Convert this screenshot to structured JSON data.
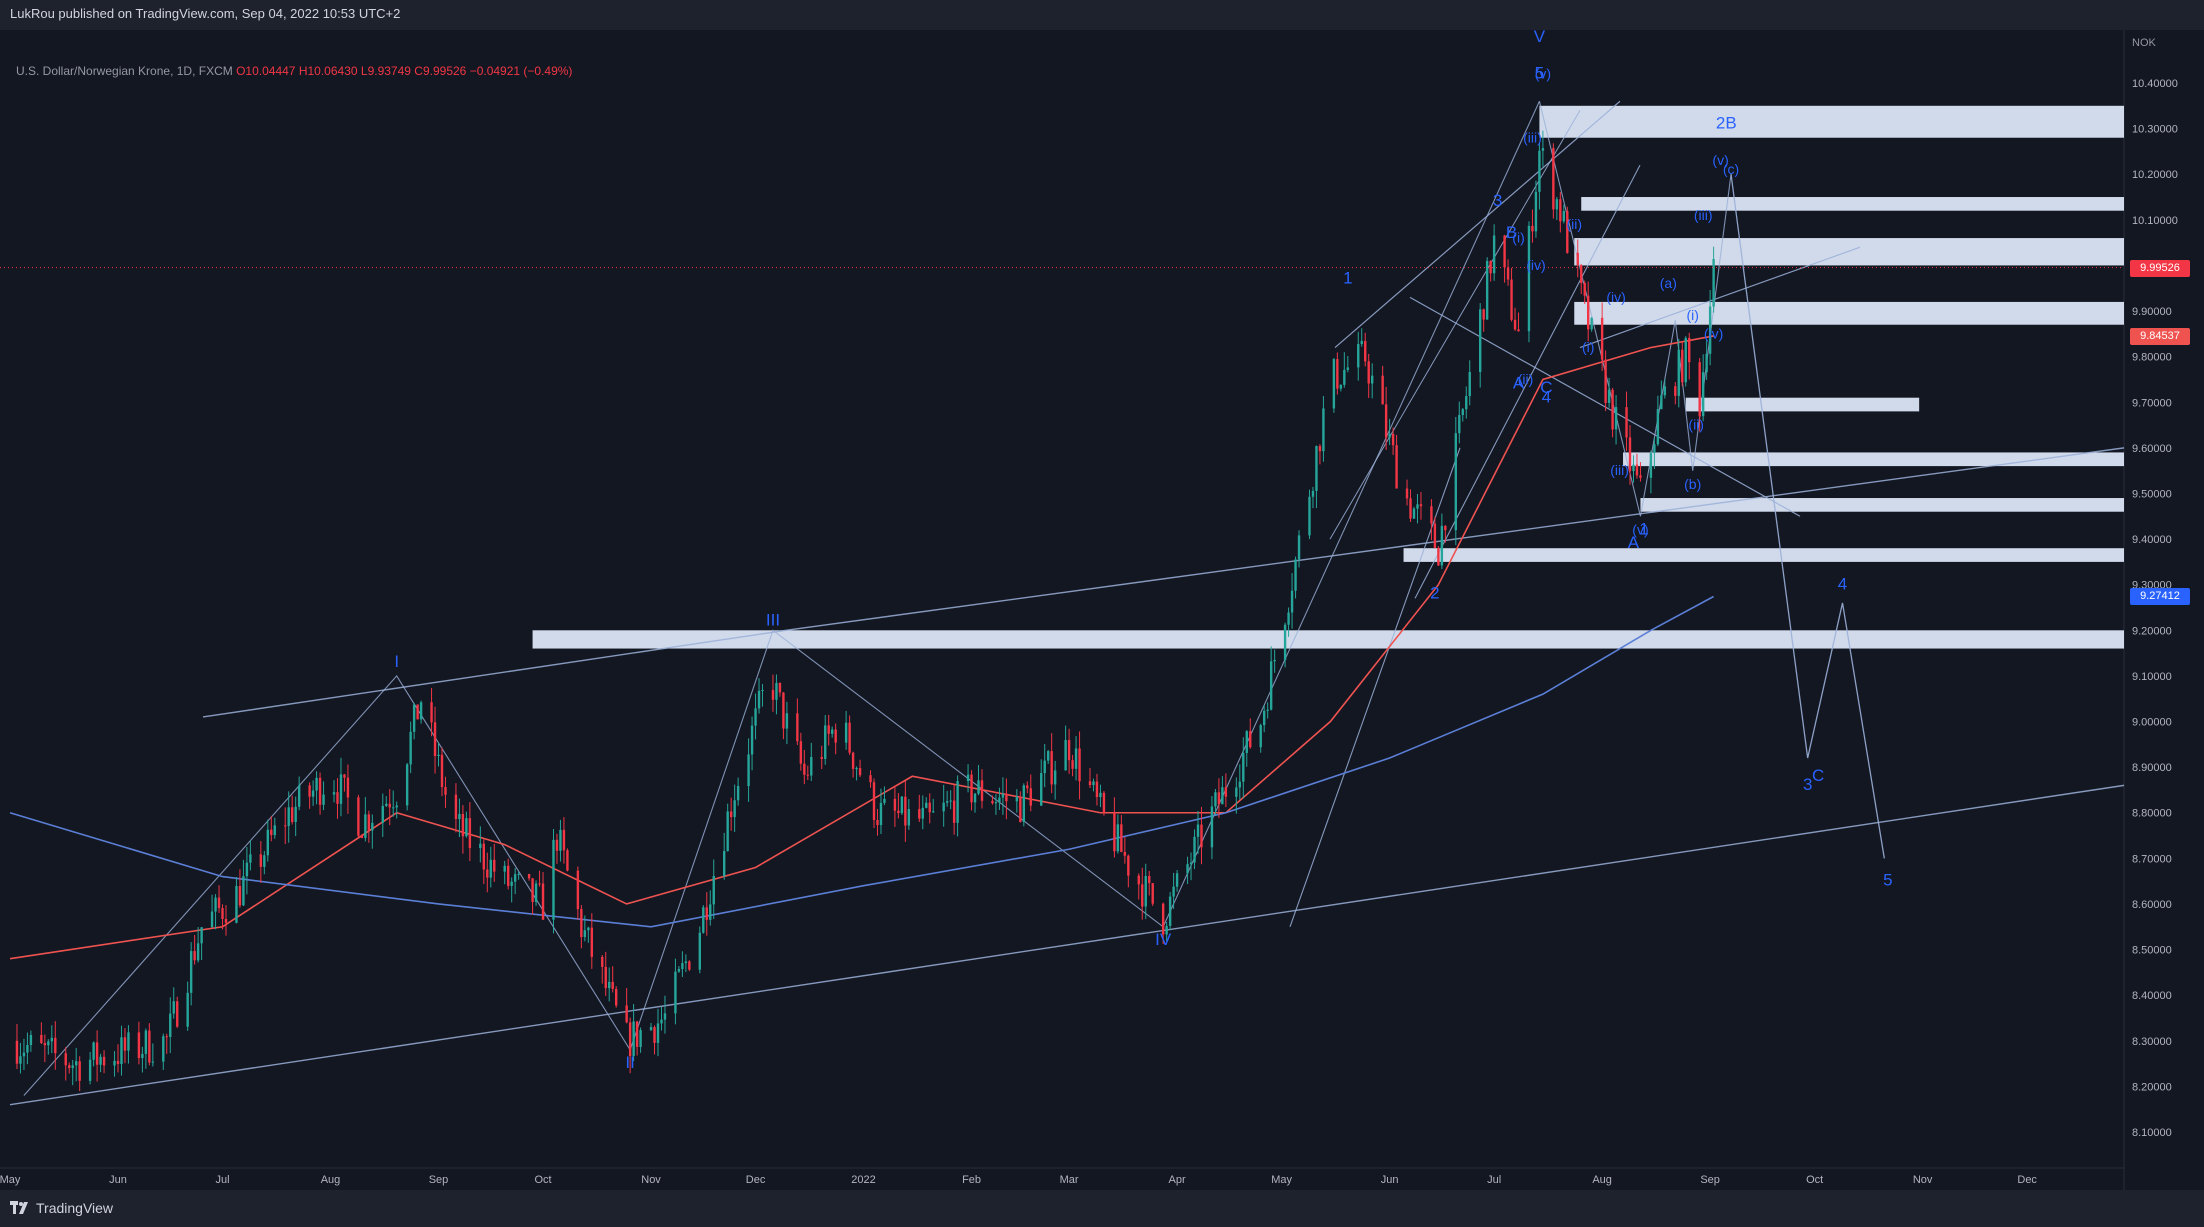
{
  "header": {
    "publisher": "LukRou published on TradingView.com, Sep 04, 2022 10:53 UTC+2"
  },
  "symbol_line": {
    "name": "U.S. Dollar/Norwegian Krone, 1D, FXCM",
    "open": "O10.04447",
    "high": "H10.06430",
    "low": "L9.93749",
    "close": "C9.99526",
    "change": "−0.04921 (−0.49%)"
  },
  "footer": {
    "brand": "TradingView"
  },
  "colors": {
    "background": "#131722",
    "up": "#26a69a",
    "down": "#f23645",
    "ma50": "#ef5350",
    "ma200": "#5b7fd6",
    "drawing": "#9bb0d8",
    "zone": "#dbe5f7",
    "wave_label": "#2962ff"
  },
  "price_tags": {
    "current": "9.99526",
    "ma50": "9.84537",
    "ma200": "9.27412"
  },
  "chart_data": {
    "type": "candlestick",
    "title": "U.S. Dollar/Norwegian Krone, 1D, FXCM",
    "currency_label": "NOK",
    "y_ticks": [
      "10.40000",
      "10.30000",
      "10.20000",
      "10.10000",
      "10.00000",
      "9.90000",
      "9.80000",
      "9.70000",
      "9.60000",
      "9.50000",
      "9.40000",
      "9.30000",
      "9.20000",
      "9.10000",
      "9.00000",
      "8.90000",
      "8.80000",
      "8.70000",
      "8.60000",
      "8.50000",
      "8.40000",
      "8.30000",
      "8.20000",
      "8.10000"
    ],
    "ylim": [
      8.03,
      10.52
    ],
    "x_ticks": [
      "May",
      "Jun",
      "Jul",
      "Aug",
      "Sep",
      "Oct",
      "Nov",
      "Dec",
      "2022",
      "Feb",
      "Mar",
      "Apr",
      "May",
      "Jun",
      "Jul",
      "Aug",
      "Sep",
      "Oct",
      "Nov",
      "Dec"
    ],
    "price_path": [
      [
        "2021-05-01",
        8.3
      ],
      [
        "2021-05-20",
        8.25
      ],
      [
        "2021-06-15",
        8.3
      ],
      [
        "2021-06-25",
        8.55
      ],
      [
        "2021-07-05",
        8.62
      ],
      [
        "2021-07-20",
        8.8
      ],
      [
        "2021-08-01",
        8.88
      ],
      [
        "2021-08-10",
        8.78
      ],
      [
        "2021-08-20",
        8.85
      ],
      [
        "2021-08-27",
        9.05
      ],
      [
        "2021-09-05",
        8.78
      ],
      [
        "2021-09-20",
        8.65
      ],
      [
        "2021-10-01",
        8.6
      ],
      [
        "2021-10-05",
        8.75
      ],
      [
        "2021-10-12",
        8.55
      ],
      [
        "2021-10-25",
        8.3
      ],
      [
        "2021-11-05",
        8.35
      ],
      [
        "2021-11-15",
        8.55
      ],
      [
        "2021-11-25",
        8.85
      ],
      [
        "2021-12-05",
        9.1
      ],
      [
        "2021-12-15",
        8.88
      ],
      [
        "2021-12-25",
        9.0
      ],
      [
        "2022-01-05",
        8.8
      ],
      [
        "2022-01-20",
        8.78
      ],
      [
        "2022-02-01",
        8.85
      ],
      [
        "2022-02-15",
        8.82
      ],
      [
        "2022-03-01",
        8.95
      ],
      [
        "2022-03-10",
        8.8
      ],
      [
        "2022-03-20",
        8.66
      ],
      [
        "2022-03-28",
        8.57
      ],
      [
        "2022-04-10",
        8.78
      ],
      [
        "2022-04-25",
        9.0
      ],
      [
        "2022-05-05",
        9.35
      ],
      [
        "2022-05-15",
        9.75
      ],
      [
        "2022-05-25",
        9.8
      ],
      [
        "2022-06-05",
        9.5
      ],
      [
        "2022-06-15",
        9.38
      ],
      [
        "2022-06-25",
        9.8
      ],
      [
        "2022-07-01",
        10.05
      ],
      [
        "2022-07-08",
        9.85
      ],
      [
        "2022-07-14",
        10.25
      ],
      [
        "2022-07-20",
        10.12
      ],
      [
        "2022-07-27",
        9.9
      ],
      [
        "2022-08-05",
        9.65
      ],
      [
        "2022-08-12",
        9.5
      ],
      [
        "2022-08-18",
        9.7
      ],
      [
        "2022-08-25",
        9.8
      ],
      [
        "2022-08-29",
        9.7
      ],
      [
        "2022-09-02",
        9.99526
      ]
    ],
    "moving_averages": [
      {
        "name": "MA50",
        "path": [
          [
            "2021-05-01",
            8.48
          ],
          [
            "2021-07-01",
            8.55
          ],
          [
            "2021-08-20",
            8.8
          ],
          [
            "2021-09-20",
            8.73
          ],
          [
            "2021-10-25",
            8.6
          ],
          [
            "2021-12-01",
            8.68
          ],
          [
            "2022-01-15",
            8.88
          ],
          [
            "2022-03-10",
            8.8
          ],
          [
            "2022-04-15",
            8.8
          ],
          [
            "2022-05-15",
            9.0
          ],
          [
            "2022-06-15",
            9.3
          ],
          [
            "2022-07-15",
            9.75
          ],
          [
            "2022-08-15",
            9.82
          ],
          [
            "2022-09-02",
            9.84537
          ]
        ]
      },
      {
        "name": "MA200",
        "path": [
          [
            "2021-05-01",
            8.8
          ],
          [
            "2021-07-01",
            8.66
          ],
          [
            "2021-09-01",
            8.6
          ],
          [
            "2021-11-01",
            8.55
          ],
          [
            "2022-01-01",
            8.64
          ],
          [
            "2022-03-01",
            8.72
          ],
          [
            "2022-04-15",
            8.8
          ],
          [
            "2022-06-01",
            8.92
          ],
          [
            "2022-07-15",
            9.06
          ],
          [
            "2022-08-15",
            9.2
          ],
          [
            "2022-09-02",
            9.27412
          ]
        ]
      }
    ],
    "current_price": 9.99526,
    "wave_labels": [
      {
        "text": "I",
        "x": "2021-08-20",
        "y": 9.12
      },
      {
        "text": "II",
        "x": "2021-10-26",
        "y": 8.24
      },
      {
        "text": "III",
        "x": "2021-12-06",
        "y": 9.21
      },
      {
        "text": "IV",
        "x": "2022-03-28",
        "y": 8.51
      },
      {
        "text": "V",
        "x": "2022-07-14",
        "y": 10.49
      },
      {
        "text": "1",
        "x": "2022-05-20",
        "y": 9.96
      },
      {
        "text": "2",
        "x": "2022-06-14",
        "y": 9.27
      },
      {
        "text": "3",
        "x": "2022-07-02",
        "y": 10.13
      },
      {
        "text": "4",
        "x": "2022-07-16",
        "y": 9.7
      },
      {
        "text": "5",
        "x": "2022-07-14",
        "y": 10.41
      },
      {
        "text": "A",
        "x": "2022-07-08",
        "y": 9.73
      },
      {
        "text": "B",
        "x": "2022-07-06",
        "y": 10.06
      },
      {
        "text": "C",
        "x": "2022-07-16",
        "y": 9.72
      },
      {
        "text": "(v)",
        "x": "2022-07-15",
        "y": 10.41
      },
      {
        "text": "(iii)",
        "x": "2022-07-12",
        "y": 10.27
      },
      {
        "text": "(i)",
        "x": "2022-07-08",
        "y": 10.05
      },
      {
        "text": "(iv)",
        "x": "2022-07-13",
        "y": 9.99
      },
      {
        "text": "(ii)",
        "x": "2022-07-10",
        "y": 9.74
      },
      {
        "text": "(ii)",
        "x": "2022-07-24",
        "y": 10.08
      },
      {
        "text": "(i)",
        "x": "2022-07-28",
        "y": 9.81
      },
      {
        "text": "(iv)",
        "x": "2022-08-05",
        "y": 9.92
      },
      {
        "text": "(iii)",
        "x": "2022-08-06",
        "y": 9.54
      },
      {
        "text": "A",
        "x": "2022-08-10",
        "y": 9.38
      },
      {
        "text": "(v)",
        "x": "2022-08-12",
        "y": 9.41
      },
      {
        "text": "1",
        "x": "2022-08-13",
        "y": 9.41
      },
      {
        "text": "(a)",
        "x": "2022-08-20",
        "y": 9.95
      },
      {
        "text": "(b)",
        "x": "2022-08-27",
        "y": 9.51
      },
      {
        "text": "(i)",
        "x": "2022-08-27",
        "y": 9.88
      },
      {
        "text": "(ii)",
        "x": "2022-08-28",
        "y": 9.64
      },
      {
        "text": "(iv)",
        "x": "2022-09-02",
        "y": 9.84
      },
      {
        "text": "(iii)",
        "x": "2022-08-30",
        "y": 10.1
      },
      {
        "text": "(v)",
        "x": "2022-09-04",
        "y": 10.22
      },
      {
        "text": "(c)",
        "x": "2022-09-07",
        "y": 10.2
      },
      {
        "text": "2",
        "x": "2022-09-04",
        "y": 10.3
      },
      {
        "text": "B",
        "x": "2022-09-07",
        "y": 10.3
      },
      {
        "text": "3",
        "x": "2022-09-29",
        "y": 8.85
      },
      {
        "text": "C",
        "x": "2022-10-02",
        "y": 8.87
      },
      {
        "text": "4",
        "x": "2022-10-09",
        "y": 9.29
      },
      {
        "text": "5",
        "x": "2022-10-22",
        "y": 8.64
      }
    ],
    "forecast_path": [
      [
        "2022-09-07",
        10.2
      ],
      [
        "2022-09-29",
        8.92
      ],
      [
        "2022-10-09",
        9.26
      ],
      [
        "2022-10-21",
        8.7
      ]
    ]
  }
}
